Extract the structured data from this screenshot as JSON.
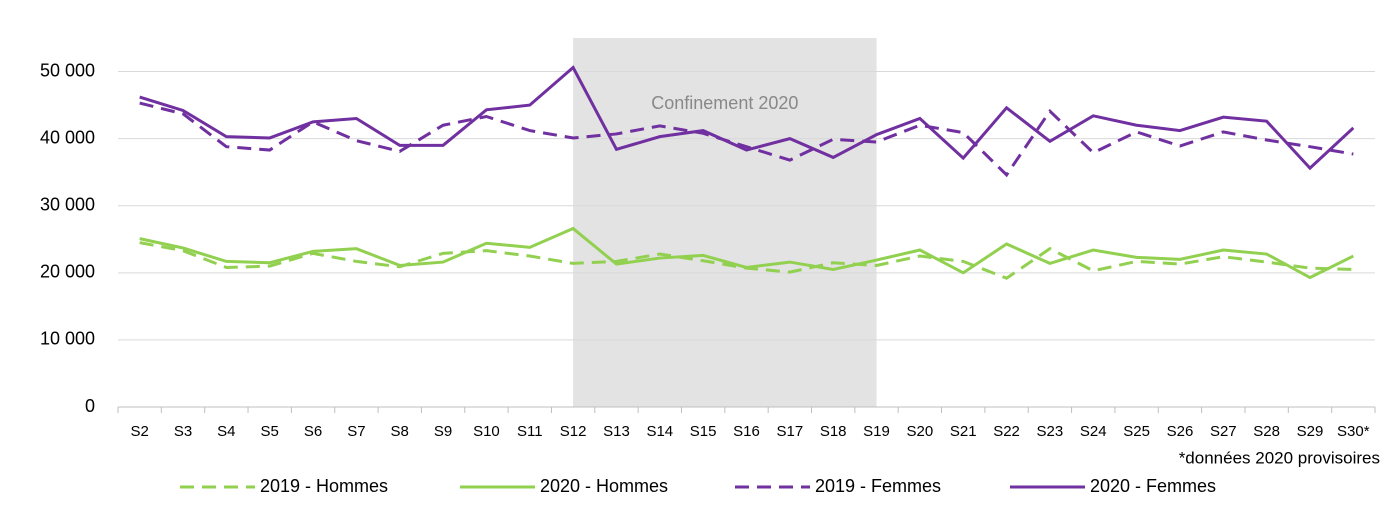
{
  "chart_data": {
    "type": "line",
    "categories": [
      "S2",
      "S3",
      "S4",
      "S5",
      "S6",
      "S7",
      "S8",
      "S9",
      "S10",
      "S11",
      "S12",
      "S13",
      "S14",
      "S15",
      "S16",
      "S17",
      "S18",
      "S19",
      "S20",
      "S21",
      "S22",
      "S23",
      "S24",
      "S25",
      "S26",
      "S27",
      "S28",
      "S29",
      "S30*"
    ],
    "series": [
      {
        "name": "2019 - Hommes",
        "color": "#92d050",
        "dashed": true,
        "values": [
          24500,
          23300,
          20800,
          21000,
          22900,
          21700,
          20900,
          22900,
          23300,
          22500,
          21400,
          21700,
          22800,
          21800,
          20700,
          20100,
          21500,
          21100,
          22500,
          21700,
          19200,
          23600,
          20300,
          21700,
          21300,
          22400,
          21600,
          20700,
          20500
        ]
      },
      {
        "name": "2020 - Hommes",
        "color": "#92d050",
        "dashed": false,
        "values": [
          25100,
          23700,
          21700,
          21500,
          23200,
          23600,
          21100,
          21600,
          24400,
          23800,
          26600,
          21300,
          22200,
          22600,
          20800,
          21600,
          20500,
          21900,
          23400,
          20000,
          24300,
          21400,
          23400,
          22300,
          22000,
          23400,
          22800,
          19300,
          22500
        ]
      },
      {
        "name": "2019 - Femmes",
        "color": "#7030a0",
        "dashed": true,
        "values": [
          45300,
          43700,
          38800,
          38300,
          42500,
          39700,
          38100,
          42000,
          43300,
          41200,
          40100,
          40700,
          41900,
          40800,
          38800,
          36800,
          39900,
          39500,
          42000,
          40900,
          34600,
          44100,
          37900,
          41000,
          38900,
          41000,
          39800,
          38800,
          37700
        ]
      },
      {
        "name": "2020 - Femmes",
        "color": "#7030a0",
        "dashed": false,
        "values": [
          46200,
          44200,
          40300,
          40100,
          42500,
          43000,
          39000,
          39000,
          44300,
          45000,
          50600,
          38400,
          40300,
          41200,
          38300,
          40000,
          37200,
          40600,
          43000,
          37100,
          44600,
          39600,
          43400,
          42000,
          41200,
          43200,
          42600,
          35600,
          41600
        ]
      }
    ],
    "ylim": [
      0,
      55000
    ],
    "yticks": [
      0,
      {
        "value": 10000,
        "label": "10 000"
      },
      {
        "value": 20000,
        "label": "20 000"
      },
      {
        "value": 30000,
        "label": "30 000"
      },
      {
        "value": 40000,
        "label": "40 000"
      },
      {
        "value": 50000,
        "label": "50 000"
      }
    ],
    "grid": true,
    "shaded_period": {
      "label": "Confinement 2020",
      "start": "S12",
      "end": "S19",
      "color": "#e3e3e3"
    },
    "footnote": "*données 2020 provisoires",
    "legend": "bottom"
  }
}
